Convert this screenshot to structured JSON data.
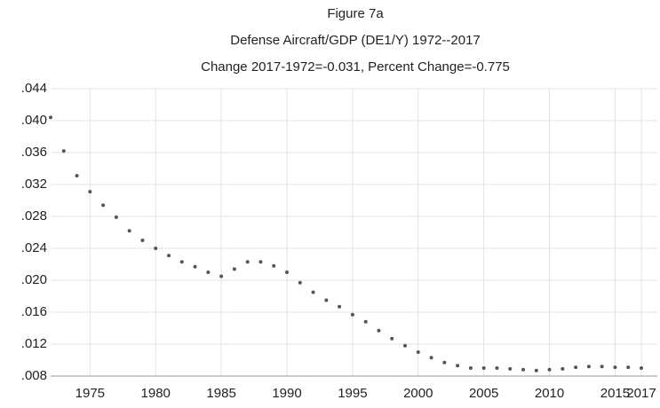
{
  "chart_data": {
    "type": "scatter",
    "title": "Figure 7a",
    "subtitle": "Defense Aircraft/GDP  (DE1/Y)  1972--2017",
    "annotation": "Change 2017-1972=-0.031, Percent Change=-0.775",
    "color": "#555555",
    "grid": true,
    "x": [
      1972,
      1973,
      1974,
      1975,
      1976,
      1977,
      1978,
      1979,
      1980,
      1981,
      1982,
      1983,
      1984,
      1985,
      1986,
      1987,
      1988,
      1989,
      1990,
      1991,
      1992,
      1993,
      1994,
      1995,
      1996,
      1997,
      1998,
      1999,
      2000,
      2001,
      2002,
      2003,
      2004,
      2005,
      2006,
      2007,
      2008,
      2009,
      2010,
      2011,
      2012,
      2013,
      2014,
      2015,
      2016,
      2017
    ],
    "values": [
      0.0404,
      0.0362,
      0.0331,
      0.0311,
      0.0294,
      0.0279,
      0.0262,
      0.025,
      0.024,
      0.0231,
      0.0223,
      0.0217,
      0.021,
      0.0205,
      0.0214,
      0.0223,
      0.0223,
      0.0218,
      0.021,
      0.0197,
      0.0185,
      0.0175,
      0.0167,
      0.0157,
      0.0148,
      0.0137,
      0.0127,
      0.0118,
      0.011,
      0.0103,
      0.0097,
      0.0093,
      0.009,
      0.009,
      0.009,
      0.0089,
      0.0088,
      0.0087,
      0.0088,
      0.0089,
      0.0091,
      0.0092,
      0.0092,
      0.0091,
      0.0091,
      0.009
    ],
    "xlim": [
      1972,
      2017
    ],
    "xticks": [
      1975,
      1980,
      1985,
      1990,
      1995,
      2000,
      2005,
      2010,
      2015,
      2017
    ],
    "ylim": [
      0.008,
      0.044
    ],
    "yticks": [
      {
        "value": 0.008,
        "label": ".008"
      },
      {
        "value": 0.012,
        "label": ".012"
      },
      {
        "value": 0.016,
        "label": ".016"
      },
      {
        "value": 0.02,
        "label": ".020"
      },
      {
        "value": 0.024,
        "label": ".024"
      },
      {
        "value": 0.028,
        "label": ".028"
      },
      {
        "value": 0.032,
        "label": ".032"
      },
      {
        "value": 0.036,
        "label": ".036"
      },
      {
        "value": 0.04,
        "label": ".040"
      },
      {
        "value": 0.044,
        "label": ".044"
      }
    ]
  }
}
